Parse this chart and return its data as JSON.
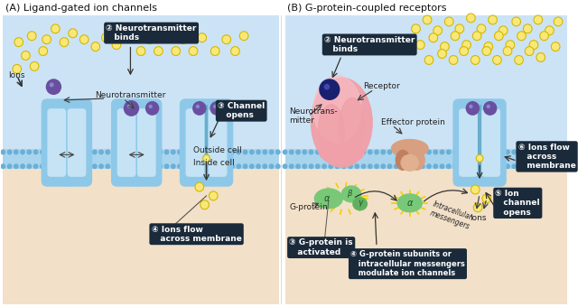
{
  "title_a": "(A) Ligand-gated ion channels",
  "title_b": "(B) G-protein-coupled receptors",
  "bg_top_color": "#cce3f5",
  "bg_bottom_color": "#f2e0c8",
  "membrane_body_color": "#a8d4ee",
  "membrane_dot_color": "#6aafd6",
  "channel_outer_color": "#8ec8e8",
  "channel_inner_color": "#c5e3f5",
  "channel_dark_color": "#6aadcc",
  "neurotrans_color_a": "#6a4fa0",
  "neurotrans_color_b": "#1a2070",
  "ion_fill": "#f9e878",
  "ion_edge": "#d4b800",
  "receptor_color": "#f0a0a8",
  "receptor_highlight": "#f8c0c8",
  "gprotein_alpha_color": "#78c878",
  "gprotein_beta_color": "#78c878",
  "gprotein_gamma_color": "#78c878",
  "effector_color": "#d8a080",
  "effector_dark": "#c08060",
  "label_bg": "#2a3a4a",
  "outside_label": "Outside cell",
  "inside_label": "Inside cell",
  "ions_label": "Ions",
  "nt_label": "Neurotransmitter",
  "nt_b_label": "Neurotrans-\nmitter",
  "receptor_label": "Receptor",
  "effector_label": "Effector protein",
  "gprotein_label": "G-protein",
  "intracellular_msg": "Intracellular\nmessengers"
}
